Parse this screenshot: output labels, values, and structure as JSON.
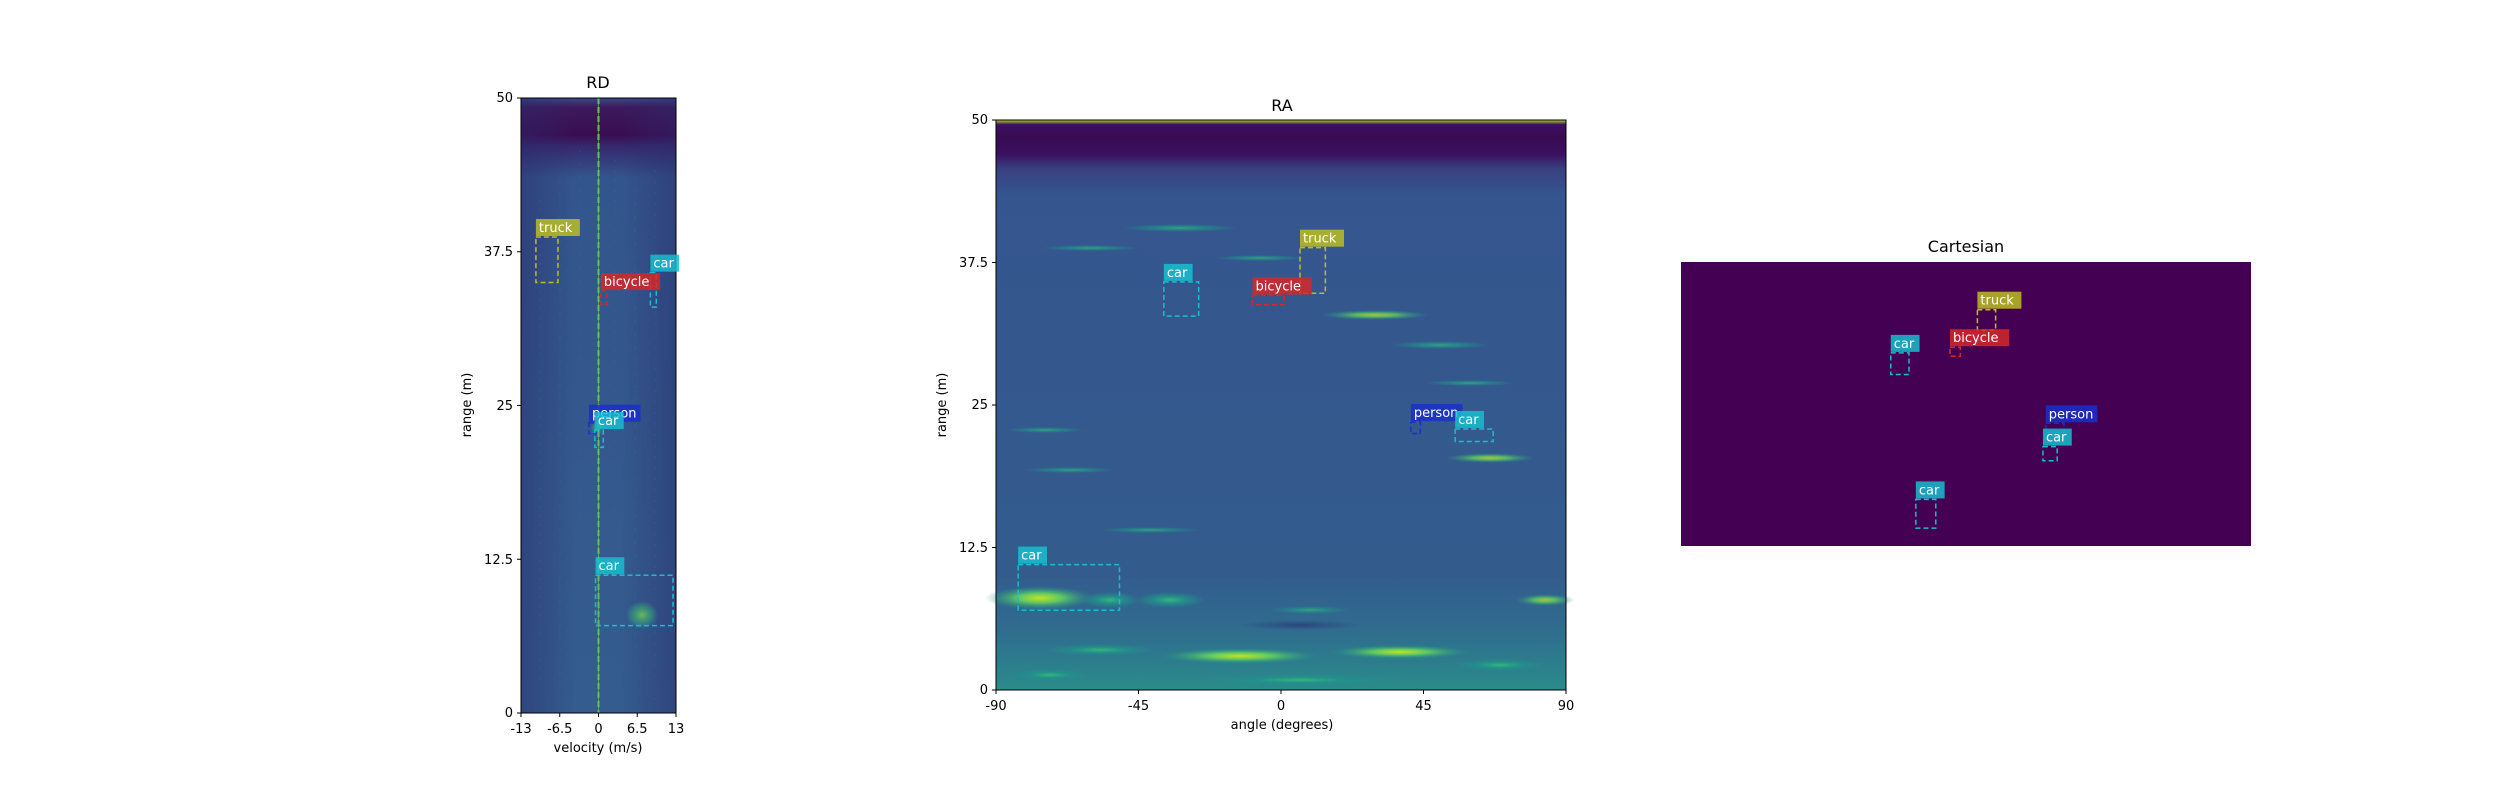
{
  "chart_data": [
    {
      "type": "heatmap",
      "title": "RD",
      "xlabel": "velocity (m/s)",
      "ylabel": "range (m)",
      "xlim": [
        -13,
        13
      ],
      "ylim": [
        0,
        50
      ],
      "xticks": [
        "-13",
        "-6.5",
        "0",
        "6.5",
        "13"
      ],
      "yticks": [
        "0",
        "12.5",
        "25",
        "37.5",
        "50"
      ],
      "detections": [
        {
          "label": "truck",
          "color": "#bcbd22",
          "x0": -10.5,
          "x1": -6.8,
          "y0": 35.0,
          "y1": 38.7
        },
        {
          "label": "car",
          "color": "#17becf",
          "x0": 8.7,
          "x1": 9.7,
          "y0": 33.0,
          "y1": 35.8
        },
        {
          "label": "bicycle",
          "color": "#d62728",
          "x0": 0.4,
          "x1": 1.4,
          "y0": 33.2,
          "y1": 34.3
        },
        {
          "label": "person",
          "color": "#1a2fc8",
          "x0": -1.6,
          "x1": -0.4,
          "y0": 22.7,
          "y1": 23.6
        },
        {
          "label": "car",
          "color": "#17becf",
          "x0": -0.6,
          "x1": 0.8,
          "y0": 21.6,
          "y1": 23.0
        },
        {
          "label": "car",
          "color": "#17becf",
          "x0": -0.5,
          "x1": 12.5,
          "y0": 7.1,
          "y1": 11.2
        }
      ]
    },
    {
      "type": "heatmap",
      "title": "RA",
      "xlabel": "angle (degrees)",
      "ylabel": "range (m)",
      "xlim": [
        -90,
        90
      ],
      "ylim": [
        0,
        50
      ],
      "xticks": [
        "-90",
        "-45",
        "0",
        "45",
        "90"
      ],
      "yticks": [
        "0",
        "12.5",
        "25",
        "37.5",
        "50"
      ],
      "detections": [
        {
          "label": "truck",
          "color": "#bcbd22",
          "x0": 6,
          "x1": 14,
          "y0": 34.8,
          "y1": 38.8
        },
        {
          "label": "car",
          "color": "#17becf",
          "x0": -37,
          "x1": -26,
          "y0": 32.8,
          "y1": 35.8
        },
        {
          "label": "bicycle",
          "color": "#d62728",
          "x0": -9,
          "x1": 1,
          "y0": 33.8,
          "y1": 34.6
        },
        {
          "label": "person",
          "color": "#1a2fc8",
          "x0": 41,
          "x1": 44,
          "y0": 22.5,
          "y1": 23.5
        },
        {
          "label": "car",
          "color": "#17becf",
          "x0": 55,
          "x1": 67,
          "y0": 21.8,
          "y1": 22.9
        },
        {
          "label": "car",
          "color": "#17becf",
          "x0": -83,
          "x1": -51,
          "y0": 7.0,
          "y1": 11.0
        }
      ]
    },
    {
      "type": "heatmap",
      "title": "Cartesian",
      "xlabel": "",
      "ylabel": "",
      "detections": [
        {
          "label": "truck",
          "color": "#bcbd22",
          "x0": 0.52,
          "x1": 0.552,
          "y0": 0.76,
          "y1": 0.832
        },
        {
          "label": "bicycle",
          "color": "#d62728",
          "x0": 0.472,
          "x1": 0.49,
          "y0": 0.668,
          "y1": 0.7
        },
        {
          "label": "car",
          "color": "#17becf",
          "x0": 0.368,
          "x1": 0.4,
          "y0": 0.604,
          "y1": 0.68
        },
        {
          "label": "person",
          "color": "#1a2fc8",
          "x0": 0.64,
          "x1": 0.672,
          "y0": 0.4,
          "y1": 0.432
        },
        {
          "label": "car",
          "color": "#17becf",
          "x0": 0.635,
          "x1": 0.66,
          "y0": 0.3,
          "y1": 0.35
        },
        {
          "label": "car",
          "color": "#17becf",
          "x0": 0.412,
          "x1": 0.447,
          "y0": 0.063,
          "y1": 0.164
        }
      ]
    }
  ]
}
